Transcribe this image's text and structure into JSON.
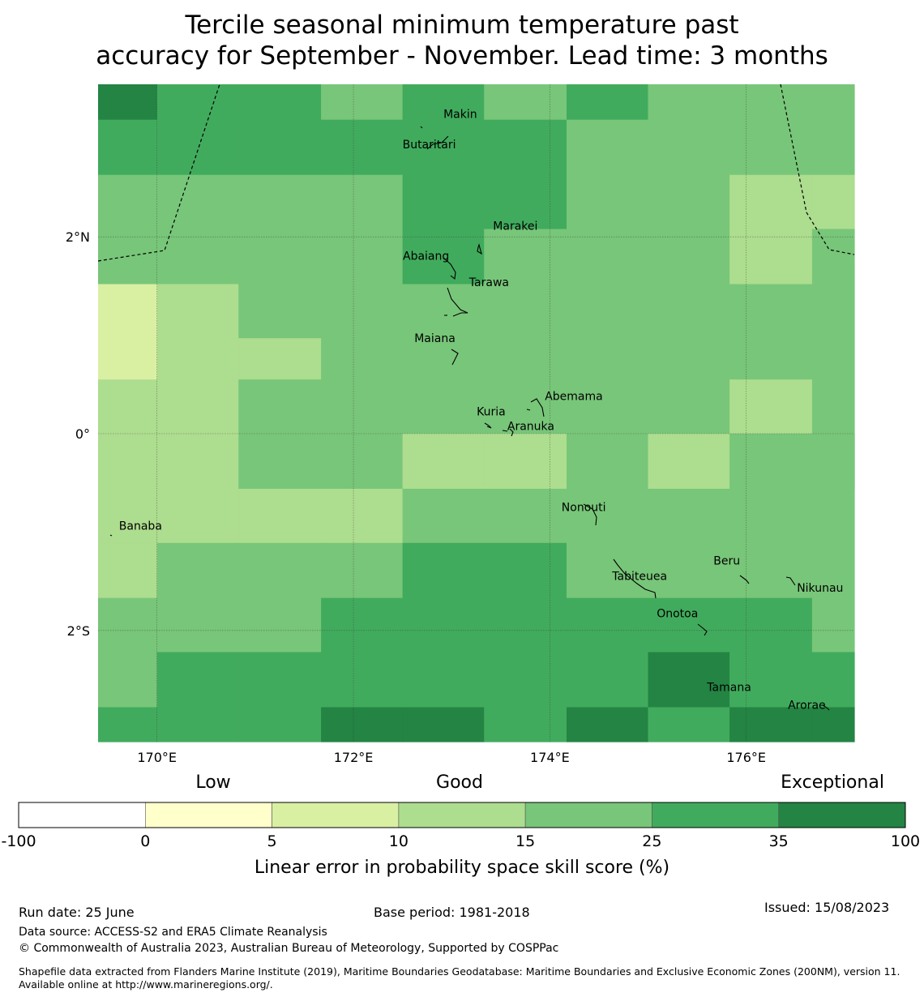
{
  "title": {
    "line1": "Tercile seasonal minimum temperature past",
    "line2": "accuracy for September - November. Lead time: 3 months"
  },
  "map": {
    "lon_range": [
      169.4,
      177.1
    ],
    "lat_range": [
      -3.13,
      3.55
    ],
    "grid_lons": [
      170,
      172,
      174,
      176
    ],
    "grid_lats": [
      2,
      0,
      -2
    ],
    "x_tick_labels": [
      "170°E",
      "172°E",
      "174°E",
      "176°E"
    ],
    "y_tick_labels": [
      "2°N",
      "0°",
      "2°S"
    ],
    "cell_colors": {
      "c0": "#ffffff",
      "c1": "#ffffcc",
      "c2": "#d9f0a3",
      "c3": "#addd8e",
      "c4": "#78c679",
      "c5": "#41ab5d",
      "c6": "#238443"
    },
    "cell_cols_lon": [
      [
        169.4,
        170.0
      ],
      [
        170.0,
        170.83
      ],
      [
        170.83,
        171.67
      ],
      [
        171.67,
        172.5
      ],
      [
        172.5,
        173.33
      ],
      [
        173.33,
        174.17
      ],
      [
        174.17,
        175.0
      ],
      [
        175.0,
        175.83
      ],
      [
        175.83,
        176.67
      ],
      [
        176.67,
        177.1
      ]
    ],
    "cell_rows_lat": [
      [
        3.55,
        3.19
      ],
      [
        3.19,
        2.63
      ],
      [
        2.63,
        2.08
      ],
      [
        2.08,
        1.66
      ],
      [
        1.66,
        1.52
      ],
      [
        1.52,
        0.97
      ],
      [
        0.97,
        0.55
      ],
      [
        0.55,
        0.0
      ],
      [
        0.0,
        -0.56
      ],
      [
        0.0,
        -0.56
      ],
      [
        -0.56,
        -1.11
      ],
      [
        -1.11,
        -1.67
      ],
      [
        -1.67,
        -2.22
      ],
      [
        -2.22,
        -2.78
      ],
      [
        -2.78,
        -3.13
      ]
    ],
    "cells": [
      [
        6,
        5,
        5,
        4,
        5,
        4,
        5,
        4,
        4,
        4
      ],
      [
        5,
        5,
        5,
        5,
        5,
        5,
        4,
        4,
        4,
        4
      ],
      [
        4,
        4,
        4,
        4,
        5,
        5,
        4,
        4,
        3,
        3
      ],
      [
        4,
        4,
        4,
        4,
        5,
        4,
        4,
        4,
        3,
        4
      ],
      [
        4,
        4,
        4,
        4,
        5,
        4,
        4,
        4,
        3,
        4
      ],
      [
        2,
        3,
        4,
        4,
        4,
        4,
        4,
        4,
        4,
        4
      ],
      [
        2,
        3,
        3,
        4,
        4,
        4,
        4,
        4,
        4,
        4
      ],
      [
        3,
        3,
        4,
        4,
        4,
        4,
        4,
        4,
        3,
        4
      ],
      [
        3,
        3,
        4,
        4,
        3,
        3,
        4,
        3,
        4,
        4
      ],
      [
        3,
        3,
        4,
        4,
        3,
        3,
        4,
        3,
        4,
        4
      ],
      [
        3,
        3,
        3,
        3,
        4,
        4,
        4,
        4,
        4,
        4
      ],
      [
        3,
        4,
        4,
        4,
        5,
        5,
        4,
        4,
        4,
        4
      ],
      [
        4,
        4,
        4,
        5,
        5,
        5,
        5,
        5,
        5,
        4
      ],
      [
        4,
        5,
        5,
        5,
        5,
        5,
        5,
        6,
        5,
        5
      ],
      [
        5,
        5,
        5,
        6,
        6,
        5,
        6,
        5,
        6,
        6
      ]
    ],
    "places": [
      {
        "name": "Makin",
        "lon": 172.95,
        "lat": 3.16
      },
      {
        "name": "Butaritari",
        "lon": 172.78,
        "lat": 2.99
      },
      {
        "name": "Marakei",
        "lon": 173.29,
        "lat": 2.04
      },
      {
        "name": "Abaiang",
        "lon": 172.8,
        "lat": 1.85
      },
      {
        "name": "Tarawa",
        "lon": 173.03,
        "lat": 1.45
      },
      {
        "name": "Maiana",
        "lon": 173.0,
        "lat": 0.94
      },
      {
        "name": "Abemama",
        "lon": 173.85,
        "lat": 0.4
      },
      {
        "name": "Kuria",
        "lon": 173.42,
        "lat": 0.22
      },
      {
        "name": "Aranuka",
        "lon": 173.6,
        "lat": 0.17
      },
      {
        "name": "Nonouti",
        "lon": 174.4,
        "lat": -0.64
      },
      {
        "name": "Banaba",
        "lon": 169.53,
        "lat": -0.86
      },
      {
        "name": "Beru",
        "lon": 175.98,
        "lat": -1.33
      },
      {
        "name": "Tabiteuea",
        "lon": 174.8,
        "lat": -1.42
      },
      {
        "name": "Nikunau",
        "lon": 176.45,
        "lat": -1.36
      },
      {
        "name": "Onotoa",
        "lon": 175.55,
        "lat": -1.8
      },
      {
        "name": "Tamana",
        "lon": 175.98,
        "lat": -2.5
      },
      {
        "name": "Arorae",
        "lon": 176.82,
        "lat": -2.65
      }
    ]
  },
  "colorbar": {
    "quality_words": [
      "Low",
      "Good",
      "Exceptional"
    ],
    "boundaries": [
      "-100",
      "0",
      "5",
      "10",
      "15",
      "25",
      "35",
      "100"
    ],
    "colors": [
      "#ffffff",
      "#ffffcc",
      "#d9f0a3",
      "#addd8e",
      "#78c679",
      "#41ab5d",
      "#238443"
    ],
    "label": "Linear error in probability space skill score (%)"
  },
  "footer": {
    "run_date": "Run date: 25 June",
    "base_period": "Base period: 1981-2018",
    "issued": "Issued: 15/08/2023",
    "data_source": "Data source: ACCESS-S2 and ERA5 Climate Reanalysis",
    "copyright": "© Commonwealth of Australia 2023, Australian Bureau of Meteorology, Supported by COSPPac",
    "shapefile": "Shapefile data extracted from Flanders Marine Institute (2019), Maritime Boundaries Geodatabase: Maritime Boundaries and Exclusive Economic Zones (200NM), version 11. Available online at http://www.marineregions.org/."
  }
}
